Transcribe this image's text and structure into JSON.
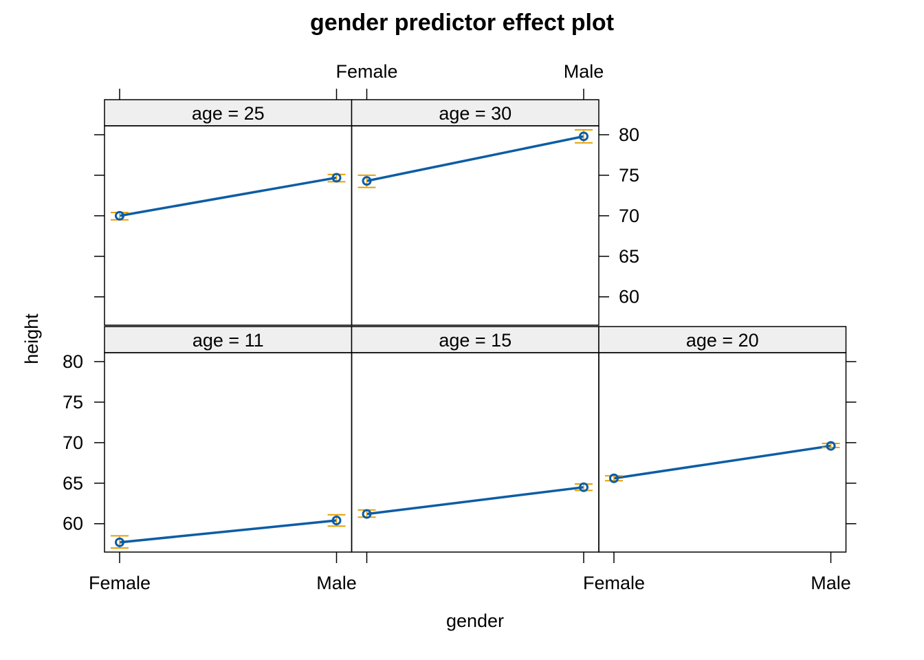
{
  "chart_data": {
    "type": "line",
    "title": "gender predictor effect plot",
    "xlabel": "gender",
    "ylabel": "height",
    "categories": [
      "Female",
      "Male"
    ],
    "ylim": [
      56.5,
      81.1
    ],
    "yticks": [
      60,
      65,
      70,
      75,
      80
    ],
    "grid": false,
    "panels": [
      {
        "strip": "age = 11",
        "values": [
          57.7,
          60.4
        ],
        "lower": [
          57.0,
          59.7
        ],
        "upper": [
          58.5,
          61.1
        ]
      },
      {
        "strip": "age = 15",
        "values": [
          61.2,
          64.5
        ],
        "lower": [
          60.8,
          64.1
        ],
        "upper": [
          61.7,
          64.9
        ]
      },
      {
        "strip": "age = 20",
        "values": [
          65.6,
          69.6
        ],
        "lower": [
          65.3,
          69.4
        ],
        "upper": [
          65.9,
          69.9
        ]
      },
      {
        "strip": "age = 25",
        "values": [
          70.0,
          74.7
        ],
        "lower": [
          69.5,
          74.2
        ],
        "upper": [
          70.4,
          75.1
        ]
      },
      {
        "strip": "age = 30",
        "values": [
          74.3,
          79.8
        ],
        "lower": [
          73.5,
          79.0
        ],
        "upper": [
          75.0,
          80.6
        ]
      }
    ],
    "colors": {
      "line": "#0C5DA5",
      "ci": "#E69F00",
      "strip": "#EFEFEF"
    }
  }
}
